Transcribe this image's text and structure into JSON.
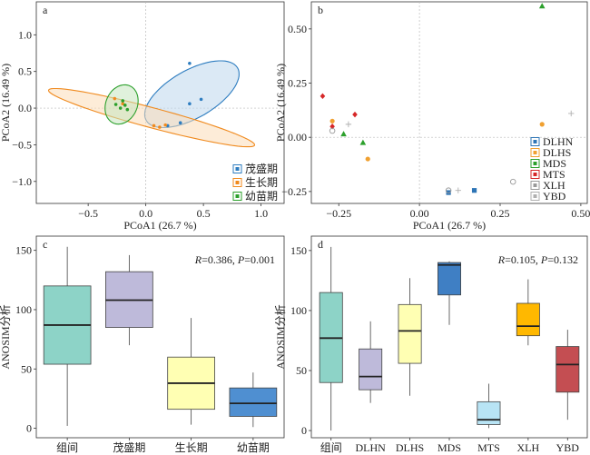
{
  "chart_data": [
    {
      "panel": "a",
      "type": "scatter",
      "xlabel": "PCoA1 (26.7 %)",
      "ylabel": "PCoA2 (16.49 %)",
      "xlim": [
        -0.95,
        1.2
      ],
      "ylim": [
        -1.3,
        1.45
      ],
      "xticks": [
        -0.5,
        0.0,
        0.5,
        1.0
      ],
      "xtick_labels": [
        "−0.5",
        "0.0",
        "0.5",
        "1.0"
      ],
      "yticks": [
        -1.0,
        -0.5,
        0.0,
        0.5,
        1.0
      ],
      "ytick_labels": [
        "−1.0",
        "−0.5",
        "0.0",
        "0.5",
        "1.0"
      ],
      "legend_position": "bottom-right",
      "series": [
        {
          "name": "茂盛期",
          "color": "#2e7dc0",
          "fill": "#bdd7ec",
          "x": [
            0.38,
            0.38,
            0.48,
            0.3,
            0.19
          ],
          "y": [
            0.61,
            0.06,
            0.12,
            -0.2,
            -0.24
          ],
          "ellipse": {
            "cx": 0.4,
            "cy": 0.19,
            "rx": 0.55,
            "ry": 0.27,
            "angle_deg": 50
          }
        },
        {
          "name": "生长期",
          "color": "#f08a1e",
          "fill": "#fbdcb8",
          "x": [
            0.07,
            0.12,
            0.17,
            -0.27,
            -0.2
          ],
          "y": [
            -0.24,
            -0.26,
            -0.23,
            0.13,
            0.06
          ],
          "ellipse": {
            "cx": 0.05,
            "cy": -0.13,
            "rx": 0.97,
            "ry": 0.13,
            "angle_deg": -23
          }
        },
        {
          "name": "幼苗期",
          "color": "#2ca02c",
          "fill": "#c6e6c0",
          "x": [
            -0.26,
            -0.2,
            -0.18,
            -0.22,
            -0.16
          ],
          "y": [
            0.05,
            0.1,
            0.04,
            0.0,
            -0.02
          ],
          "ellipse": {
            "cx": -0.21,
            "cy": 0.05,
            "rx": 0.14,
            "ry": 0.27,
            "angle_deg": -8
          }
        }
      ]
    },
    {
      "panel": "b",
      "type": "scatter",
      "xlabel": "PCoA1 (26.7 %)",
      "ylabel": "PCoA2 (16.49 %)",
      "xlim": [
        -0.335,
        0.52
      ],
      "ylim": [
        -0.305,
        0.625
      ],
      "xticks": [
        -0.25,
        0.0,
        0.25,
        0.5
      ],
      "xtick_labels": [
        "−0.25",
        "0.00",
        "0.25",
        "0.50"
      ],
      "yticks": [
        -0.25,
        0.0,
        0.25,
        0.5
      ],
      "ytick_labels": [
        "−0.25",
        "0.00",
        "0.25",
        "0.50"
      ],
      "legend_position": "bottom-right",
      "series": [
        {
          "name": "DLHN",
          "marker": "square",
          "color": "#2e75b6",
          "x": [
            0.09,
            0.17
          ],
          "y": [
            -0.255,
            -0.245
          ]
        },
        {
          "name": "DLHS",
          "marker": "circle",
          "color": "#f0a030",
          "x": [
            -0.27,
            -0.16,
            0.38
          ],
          "y": [
            0.075,
            -0.1,
            0.06
          ]
        },
        {
          "name": "MDS",
          "marker": "triangle",
          "color": "#2ca02c",
          "x": [
            -0.235,
            -0.175,
            0.38
          ],
          "y": [
            0.015,
            -0.025,
            0.605
          ]
        },
        {
          "name": "MTS",
          "marker": "diamond",
          "color": "#d62728",
          "x": [
            -0.3,
            -0.27,
            -0.2
          ],
          "y": [
            0.19,
            0.05,
            0.105
          ]
        },
        {
          "name": "XLH",
          "marker": "open-circle",
          "color": "#999999",
          "x": [
            -0.27,
            0.09,
            0.29
          ],
          "y": [
            0.03,
            -0.245,
            -0.205
          ]
        },
        {
          "name": "YBD",
          "marker": "plus",
          "color": "#b0b0b0",
          "x": [
            -0.22,
            0.12,
            0.47
          ],
          "y": [
            0.06,
            -0.245,
            0.11
          ]
        }
      ]
    },
    {
      "panel": "c",
      "type": "box",
      "ylabel": "ANOSIM分析",
      "annotation": "R=0.386, P=0.001",
      "annotation_parts": {
        "r": "0.386",
        "p": "0.001"
      },
      "ylim": [
        -8,
        162
      ],
      "yticks": [
        0,
        50,
        100,
        150
      ],
      "categories": [
        "组间",
        "茂盛期",
        "生长期",
        "幼苗期"
      ],
      "colors": [
        "#8dd3c7",
        "#bebada",
        "#ffffb3",
        "#4f8fd1"
      ],
      "boxes": [
        {
          "whislo": 2,
          "q1": 54,
          "med": 87,
          "q3": 120,
          "whishi": 153
        },
        {
          "whislo": 70,
          "q1": 85,
          "med": 108,
          "q3": 132,
          "whishi": 146
        },
        {
          "whislo": 3,
          "q1": 16,
          "med": 38,
          "q3": 60,
          "whishi": 93
        },
        {
          "whislo": 1,
          "q1": 10,
          "med": 21,
          "q3": 34,
          "whishi": 47
        }
      ]
    },
    {
      "panel": "d",
      "type": "box",
      "ylabel": "ANOSIM分析",
      "annotation": "R=0.105, P=0.132",
      "annotation_parts": {
        "r": "0.105",
        "p": "0.132"
      },
      "ylim": [
        -6,
        162
      ],
      "yticks": [
        0,
        50,
        100,
        150
      ],
      "categories": [
        "组间",
        "DLHN",
        "DLHS",
        "MDS",
        "MTS",
        "XLH",
        "YBD"
      ],
      "colors": [
        "#8dd3c7",
        "#bebada",
        "#ffffb3",
        "#3f7fc4",
        "#b8e4f5",
        "#ffb800",
        "#c44e52"
      ],
      "boxes": [
        {
          "whislo": 0,
          "q1": 40,
          "med": 77,
          "q3": 115,
          "whishi": 153
        },
        {
          "whislo": 23,
          "q1": 34,
          "med": 45,
          "q3": 68,
          "whishi": 91
        },
        {
          "whislo": 29,
          "q1": 56,
          "med": 83,
          "q3": 105,
          "whishi": 127
        },
        {
          "whislo": 88,
          "q1": 113,
          "med": 138,
          "q3": 140,
          "whishi": 141
        },
        {
          "whislo": 2,
          "q1": 5,
          "med": 9,
          "q3": 24,
          "whishi": 39
        },
        {
          "whislo": 71,
          "q1": 79,
          "med": 87,
          "q3": 106,
          "whishi": 126
        },
        {
          "whislo": 9,
          "q1": 32,
          "med": 55,
          "q3": 70,
          "whishi": 84
        }
      ]
    }
  ]
}
